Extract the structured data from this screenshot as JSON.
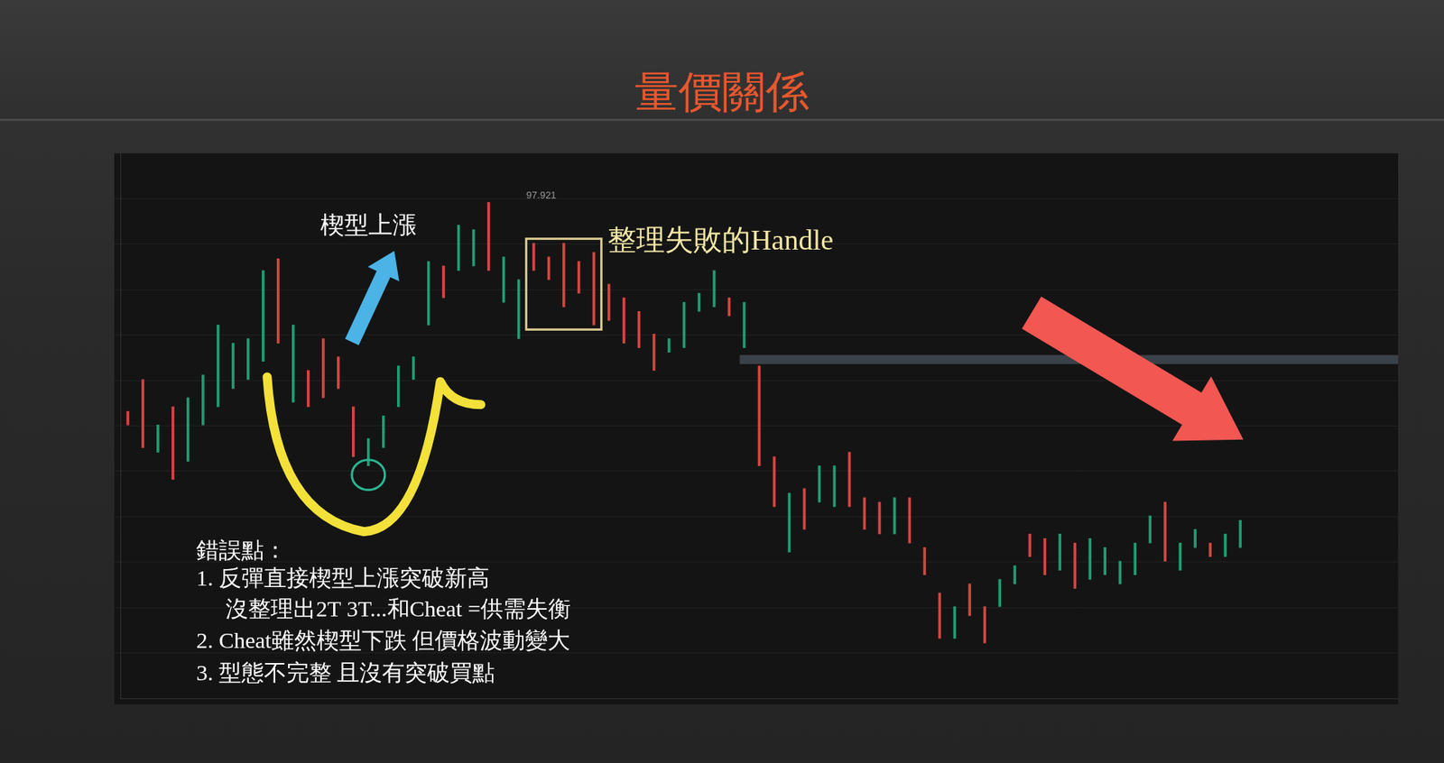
{
  "chart_data": {
    "type": "range_bar",
    "title": "量價關係",
    "categories": [
      null,
      null,
      null,
      null,
      null,
      null,
      null,
      null,
      null,
      null,
      null,
      null,
      null,
      null,
      null,
      null,
      null,
      null,
      null,
      null,
      null,
      null,
      null,
      null,
      null,
      null,
      null,
      null,
      null,
      null,
      null,
      null,
      null,
      null,
      null,
      null,
      null,
      null,
      null,
      null,
      null,
      null,
      null,
      null,
      null,
      null,
      null,
      null,
      null,
      null,
      null,
      null,
      null,
      null,
      null,
      null,
      null,
      null,
      null,
      null,
      null,
      null,
      null,
      null,
      null,
      null,
      null,
      null,
      null,
      null,
      null,
      null,
      null,
      null,
      null,
      null,
      null,
      null,
      null,
      null,
      null,
      null,
      null,
      null,
      null
    ],
    "high": [
      93.32,
      94.02,
      93.02,
      93.42,
      93.62,
      94.12,
      95.22,
      94.82,
      94.92,
      96.42,
      96.68,
      95.22,
      94.22,
      94.92,
      94.52,
      93.42,
      92.72,
      93.22,
      94.32,
      94.52,
      96.62,
      96.52,
      97.42,
      97.32,
      97.921,
      96.72,
      96.22,
      97.02,
      96.72,
      97.02,
      96.62,
      96.82,
      96.12,
      95.82,
      95.52,
      95.02,
      94.92,
      95.72,
      95.92,
      96.42,
      95.82,
      95.72,
      94.32,
      92.32,
      91.52,
      91.62,
      92.12,
      92.12,
      92.42,
      91.42,
      91.32,
      91.42,
      91.42,
      90.32,
      89.32,
      89.02,
      89.52,
      89.02,
      89.62,
      89.92,
      90.62,
      90.52,
      90.62,
      90.42,
      90.52,
      90.32,
      90.02,
      90.42,
      91.02,
      91.32,
      90.42,
      90.72,
      90.42,
      90.62,
      90.92,
      null,
      null,
      null,
      null,
      null,
      null,
      null,
      null,
      null,
      null
    ],
    "low": [
      93.02,
      92.52,
      92.42,
      91.82,
      92.22,
      93.02,
      93.42,
      93.82,
      94.02,
      94.42,
      94.82,
      93.52,
      93.42,
      93.62,
      93.82,
      92.32,
      92.12,
      92.52,
      93.42,
      94.02,
      95.22,
      95.82,
      96.42,
      96.52,
      96.42,
      95.72,
      94.92,
      96.42,
      96.22,
      95.62,
      95.92,
      95.22,
      95.32,
      94.82,
      94.72,
      94.22,
      94.62,
      94.72,
      95.52,
      95.62,
      95.42,
      94.72,
      92.12,
      91.22,
      90.22,
      90.72,
      91.32,
      91.22,
      91.22,
      90.72,
      90.62,
      90.62,
      90.42,
      89.72,
      88.32,
      88.32,
      88.82,
      88.22,
      89.02,
      89.52,
      90.12,
      89.72,
      89.82,
      89.42,
      89.62,
      89.72,
      89.52,
      89.72,
      90.42,
      90.02,
      89.82,
      90.32,
      90.12,
      90.12,
      90.32,
      null,
      null,
      null,
      null,
      null,
      null,
      null,
      null,
      null,
      null
    ],
    "colors": [
      "#d64541",
      "#d64541",
      "#1e9e72",
      "#d64541",
      "#1e9e72",
      "#1e9e72",
      "#1e9e72",
      "#1e9e72",
      "#1e9e72",
      "#1e9e72",
      "#d64541",
      "#1e9e72",
      "#d64541",
      "#d64541",
      "#d64541",
      "#d64541",
      "#1e9e72",
      "#1e9e72",
      "#1e9e72",
      "#1e9e72",
      "#1e9e72",
      "#d64541",
      "#1e9e72",
      "#1e9e72",
      "#d64541",
      "#1e9e72",
      "#1e9e72",
      "#d64541",
      "#d64541",
      "#d64541",
      "#d64541",
      "#d64541",
      "#d64541",
      "#d64541",
      "#d64541",
      "#d64541",
      "#1e9e72",
      "#1e9e72",
      "#1e9e72",
      "#1e9e72",
      "#d64541",
      "#1e9e72",
      "#d64541",
      "#d64541",
      "#1e9e72",
      "#d64541",
      "#1e9e72",
      "#1e9e72",
      "#d64541",
      "#d64541",
      "#d64541",
      "#1e9e72",
      "#d64541",
      "#d64541",
      "#d64541",
      "#1e9e72",
      "#d64541",
      "#d64541",
      "#1e9e72",
      "#1e9e72",
      "#d64541",
      "#d64541",
      "#1e9e72",
      "#d64541",
      "#1e9e72",
      "#1e9e72",
      "#1e9e72",
      "#1e9e72",
      "#1e9e72",
      "#d64541",
      "#1e9e72",
      "#1e9e72",
      "#d64541",
      "#1e9e72",
      "#1e9e72",
      null,
      null,
      null,
      null,
      null,
      null,
      null,
      null,
      null,
      null
    ],
    "high_label": 97.921,
    "reference_line": 94.46,
    "ylim": [
      87,
      99
    ],
    "yticks": [
      88,
      89,
      90,
      91,
      92,
      93,
      94,
      95,
      96,
      97,
      98
    ],
    "grid": true,
    "tick_labels": false,
    "annotations": {
      "wedge": "楔型上漲",
      "handle": "整理失敗的Handle"
    },
    "notes": [
      "錯誤點：",
      "1. 反彈直接楔型上漲突破新高",
      "沒整理出2T 3T...和Cheat =供需失衡",
      "2. Cheat雖然楔型下跌 但價格波動變大",
      "3. 型態不完整 且沒有突破買點"
    ]
  }
}
